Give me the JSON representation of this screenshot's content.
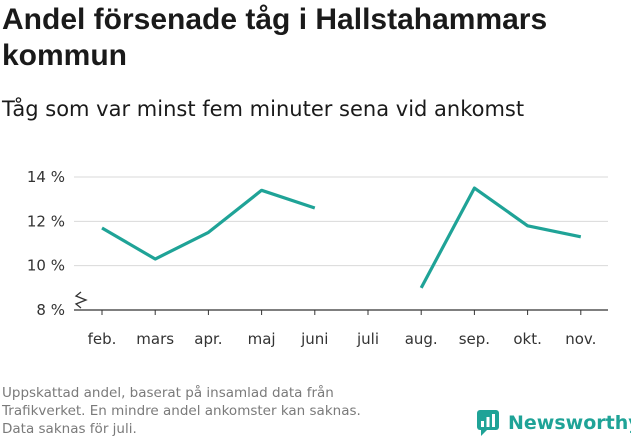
{
  "title": "Andel försenade tåg i Hallstahammars kommun",
  "subtitle": "Tåg som var minst fem minuter sena vid ankomst",
  "footnote": [
    "Uppskattad andel, baserat på insamlad data från",
    "Trafikverket. En mindre andel ankomster kan saknas.",
    "Data saknas för juli."
  ],
  "logo": {
    "text": "Newsworthy",
    "icon": "newsworthy-logo-icon",
    "color": "#1fa397"
  },
  "chart_data": {
    "type": "line",
    "categories": [
      "feb.",
      "mars",
      "apr.",
      "maj",
      "juni",
      "juli",
      "aug.",
      "sep.",
      "okt.",
      "nov."
    ],
    "series": [
      {
        "values": [
          11.7,
          10.3,
          11.5,
          13.4,
          12.6,
          null,
          9.0,
          13.5,
          11.8,
          11.3
        ],
        "color": "#1fa397"
      }
    ],
    "yticks": [
      8,
      10,
      12,
      14
    ],
    "ytick_labels": [
      "8 %",
      "10 %",
      "12 %",
      "14 %"
    ],
    "ylim": [
      8,
      14.6
    ],
    "axis_break": true,
    "grid": true,
    "xlabel": "",
    "ylabel": ""
  }
}
